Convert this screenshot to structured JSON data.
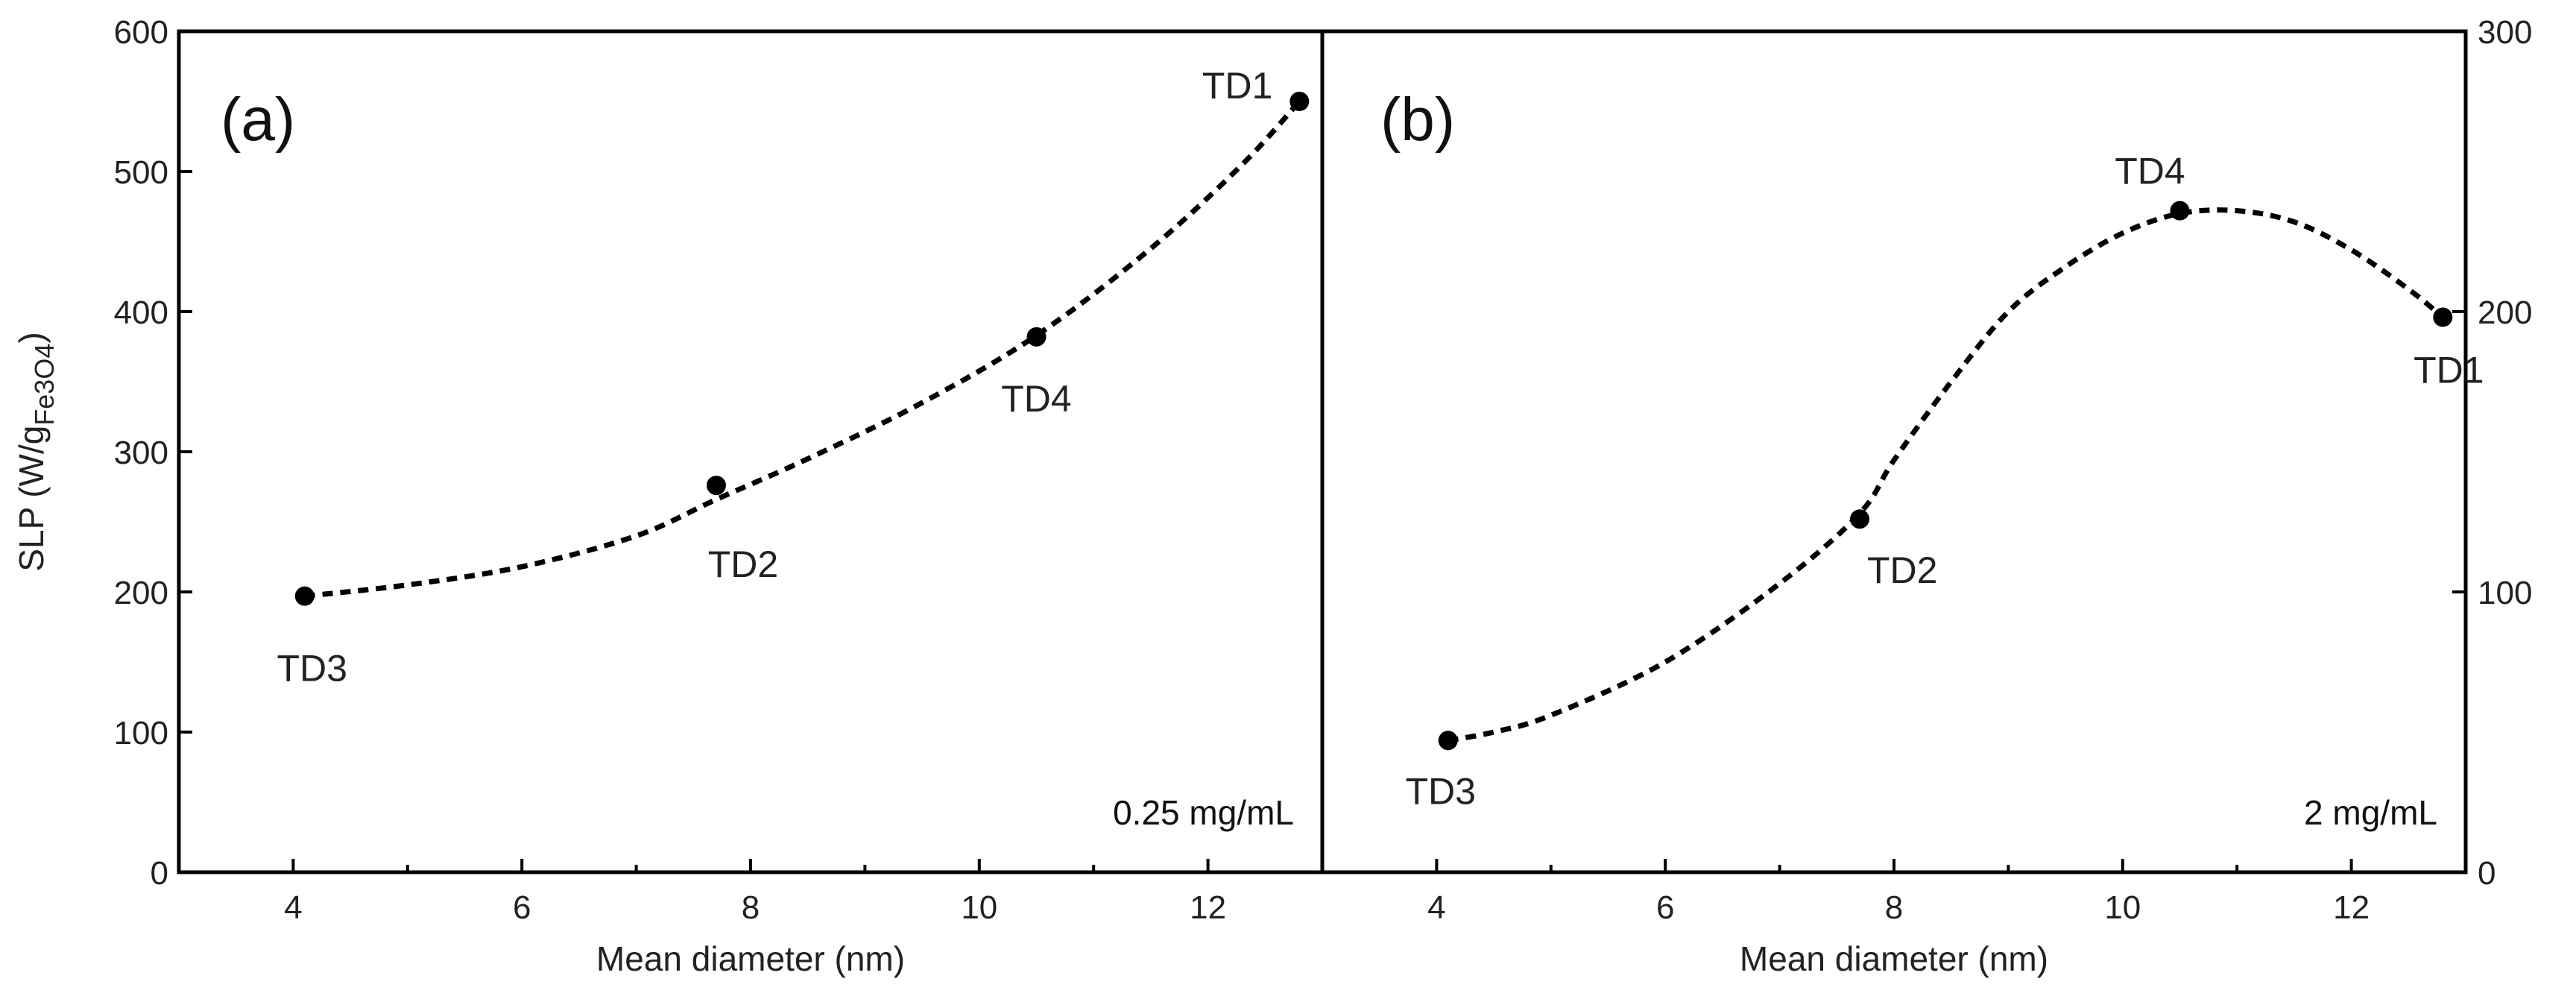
{
  "chart_data": [
    {
      "type": "scatter",
      "panel_label": "(a)",
      "annotation": "0.25 mg/mL",
      "xlabel": "Mean diameter (nm)",
      "ylabel": "SLP (W/g",
      "ylabel_sub": "Fe3O4",
      "ylabel_close": ")",
      "y_axis_side": "left",
      "xlim": [
        3,
        13
      ],
      "ylim": [
        0,
        600
      ],
      "xticks": [
        4,
        6,
        8,
        10,
        12
      ],
      "yticks": [
        0,
        100,
        200,
        300,
        400,
        500,
        600
      ],
      "points": [
        {
          "label": "TD3",
          "x": 4.1,
          "y": 197,
          "label_pos": "below"
        },
        {
          "label": "TD2",
          "x": 7.7,
          "y": 276,
          "label_pos": "below"
        },
        {
          "label": "TD4",
          "x": 10.5,
          "y": 382,
          "label_pos": "below"
        },
        {
          "label": "TD1",
          "x": 12.8,
          "y": 550,
          "label_pos": "left"
        }
      ],
      "curve": [
        [
          4.1,
          197
        ],
        [
          5,
          205
        ],
        [
          6,
          218
        ],
        [
          7,
          240
        ],
        [
          7.7,
          266
        ],
        [
          8.5,
          295
        ],
        [
          9.5,
          335
        ],
        [
          10.5,
          383
        ],
        [
          11.5,
          445
        ],
        [
          12.3,
          505
        ],
        [
          12.8,
          550
        ]
      ],
      "curve_style": "dashed"
    },
    {
      "type": "scatter",
      "panel_label": "(b)",
      "annotation": "2 mg/mL",
      "xlabel": "Mean diameter (nm)",
      "ylabel": "",
      "y_axis_side": "right",
      "xlim": [
        3,
        13
      ],
      "ylim": [
        0,
        300
      ],
      "xticks": [
        4,
        6,
        8,
        10,
        12
      ],
      "yticks": [
        0,
        100,
        200,
        300
      ],
      "points": [
        {
          "label": "TD3",
          "x": 4.1,
          "y": 47,
          "label_pos": "below"
        },
        {
          "label": "TD2",
          "x": 7.7,
          "y": 126,
          "label_pos": "below-right"
        },
        {
          "label": "TD4",
          "x": 10.5,
          "y": 236,
          "label_pos": "above"
        },
        {
          "label": "TD1",
          "x": 12.8,
          "y": 198,
          "label_pos": "below"
        }
      ],
      "curve": [
        [
          4.1,
          47
        ],
        [
          4.5,
          50
        ],
        [
          5,
          56
        ],
        [
          6,
          75
        ],
        [
          7,
          103
        ],
        [
          7.7,
          128
        ],
        [
          8,
          147
        ],
        [
          8.5,
          175
        ],
        [
          9,
          200
        ],
        [
          9.5,
          216
        ],
        [
          10,
          228
        ],
        [
          10.5,
          235
        ],
        [
          11,
          236
        ],
        [
          11.5,
          232
        ],
        [
          12,
          222
        ],
        [
          12.5,
          208
        ],
        [
          12.8,
          198
        ]
      ],
      "curve_style": "dashed"
    }
  ]
}
